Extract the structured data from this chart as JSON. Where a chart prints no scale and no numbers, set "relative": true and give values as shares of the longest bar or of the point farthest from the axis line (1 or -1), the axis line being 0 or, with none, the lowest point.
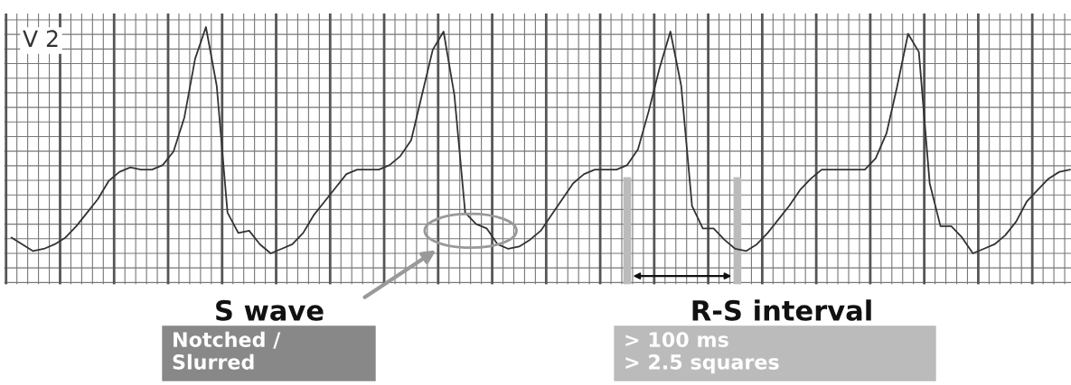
{
  "chart_data": {
    "type": "line",
    "relative": true,
    "grid": true,
    "categories": [
      null,
      null,
      null,
      null,
      null,
      null,
      null,
      null,
      null,
      null,
      null,
      null,
      null,
      null,
      null,
      null,
      null,
      null,
      null,
      null,
      null,
      null,
      null,
      null,
      null,
      null,
      null,
      null,
      null,
      null,
      null,
      null,
      null,
      null,
      null,
      null,
      null,
      null,
      null,
      null,
      null,
      null,
      null,
      null,
      null,
      null,
      null,
      null,
      null,
      null,
      null,
      null,
      null,
      null,
      null,
      null,
      null,
      null,
      null,
      null,
      null,
      null,
      null,
      null,
      null,
      null,
      null,
      null,
      null,
      null,
      null,
      null,
      null,
      null,
      null,
      null,
      null,
      null,
      null,
      null,
      null,
      null,
      null,
      null,
      null,
      null,
      null,
      null,
      null,
      null,
      null,
      null,
      null,
      null,
      null,
      null,
      null,
      null,
      null
    ],
    "series": [
      {
        "color": "#333333",
        "values": [
          0.07,
          0.04,
          0.01,
          0.02,
          0.04,
          0.07,
          0.12,
          0.18,
          0.24,
          0.32,
          0.36,
          0.38,
          0.37,
          0.37,
          0.39,
          0.45,
          0.6,
          0.86,
          1,
          0.74,
          0.18,
          0.09,
          0.1,
          0.04,
          0,
          0.02,
          0.04,
          0.09,
          0.17,
          0.23,
          0.29,
          0.35,
          0.37,
          0.37,
          0.37,
          0.39,
          0.43,
          0.5,
          0.7,
          0.9,
          0.98,
          0.7,
          0.18,
          0.13,
          0.11,
          0.04,
          0.02,
          0.03,
          0.06,
          0.1,
          0.17,
          0.24,
          0.31,
          0.35,
          0.37,
          0.37,
          0.37,
          0.39,
          0.46,
          0.63,
          0.82,
          0.98,
          0.74,
          0.21,
          0.11,
          0.11,
          0.06,
          0.02,
          0.01,
          0.04,
          0.09,
          0.15,
          0.21,
          0.28,
          0.33,
          0.37,
          0.37,
          0.37,
          0.37,
          0.37,
          0.42,
          0.53,
          0.74,
          0.97,
          0.89,
          0.31,
          0.12,
          0.12,
          0.07,
          0,
          0.02,
          0.04,
          0.08,
          0.14,
          0.23,
          0.28,
          0.33,
          0.36,
          0.37
        ]
      }
    ],
    "annotations": [
      "V 2",
      "S wave",
      "Notched /\nSlurred",
      "R-S interval",
      "> 100 ms\n> 2.5 squares"
    ]
  }
}
